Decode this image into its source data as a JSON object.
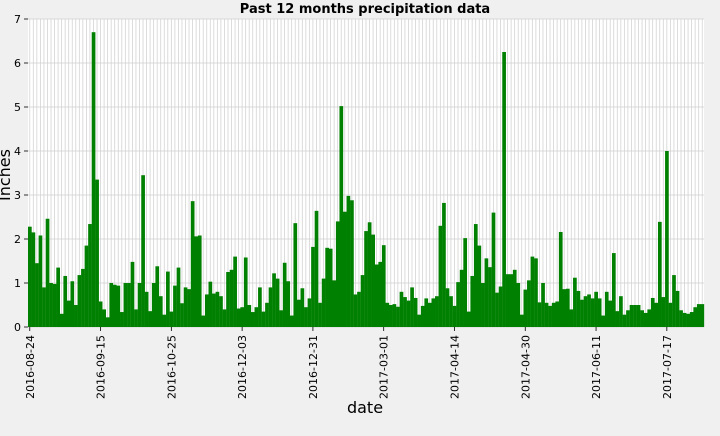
{
  "chart_data": {
    "type": "bar",
    "title": "Past 12 months precipitation data",
    "xlabel": "date",
    "ylabel": "Inches",
    "ylim": [
      0,
      7
    ],
    "yticks": [
      0,
      1,
      2,
      3,
      4,
      5,
      6,
      7
    ],
    "grid": true,
    "bar_color": "#008000",
    "x_tick_labels": [
      "2016-08-24",
      "2016-09-15",
      "2016-10-25",
      "2016-12-03",
      "2016-12-31",
      "2017-03-01",
      "2017-04-14",
      "2017-04-30",
      "2017-06-11",
      "2017-07-17"
    ],
    "x_tick_positions": [
      0,
      20,
      40,
      60,
      80,
      100,
      120,
      140,
      160,
      180
    ],
    "values": [
      2.28,
      2.15,
      1.45,
      2.08,
      0.9,
      2.46,
      1.0,
      0.98,
      1.35,
      0.3,
      1.16,
      0.6,
      1.04,
      0.5,
      1.18,
      1.32,
      1.85,
      2.34,
      6.7,
      3.35,
      0.58,
      0.4,
      0.22,
      1.0,
      0.96,
      0.94,
      0.34,
      1.0,
      1.0,
      1.48,
      0.4,
      1.0,
      3.45,
      0.8,
      0.36,
      1.0,
      1.38,
      0.7,
      0.28,
      1.26,
      0.35,
      0.94,
      1.35,
      0.54,
      0.9,
      0.86,
      2.86,
      2.06,
      2.08,
      0.26,
      0.74,
      1.03,
      0.76,
      0.8,
      0.7,
      0.4,
      1.25,
      1.3,
      1.6,
      0.42,
      0.45,
      1.58,
      0.5,
      0.34,
      0.45,
      0.9,
      0.35,
      0.55,
      0.9,
      1.22,
      1.1,
      0.38,
      1.46,
      1.04,
      0.26,
      2.36,
      0.62,
      0.88,
      0.45,
      0.65,
      1.82,
      2.64,
      0.55,
      1.1,
      1.8,
      1.78,
      1.06,
      2.4,
      5.02,
      2.62,
      2.98,
      2.88,
      0.74,
      0.8,
      1.18,
      2.18,
      2.38,
      2.1,
      1.42,
      1.48,
      1.86,
      0.55,
      0.5,
      0.52,
      0.46,
      0.8,
      0.68,
      0.6,
      0.9,
      0.66,
      0.28,
      0.48,
      0.65,
      0.55,
      0.65,
      0.7,
      2.3,
      2.82,
      0.88,
      0.7,
      0.48,
      1.02,
      1.3,
      2.02,
      0.35,
      1.16,
      2.34,
      1.85,
      1.0,
      1.56,
      1.36,
      2.6,
      0.78,
      0.92,
      6.25,
      1.2,
      1.2,
      1.3,
      1.0,
      0.28,
      0.85,
      1.06,
      1.6,
      1.56,
      0.56,
      1.0,
      0.55,
      0.48,
      0.55,
      0.58,
      2.16,
      0.86,
      0.87,
      0.4,
      1.12,
      0.82,
      0.62,
      0.7,
      0.74,
      0.65,
      0.8,
      0.65,
      0.26,
      0.8,
      0.6,
      1.68,
      0.36,
      0.7,
      0.28,
      0.38,
      0.5,
      0.5,
      0.5,
      0.38,
      0.32,
      0.4,
      0.66,
      0.55,
      2.39,
      0.68,
      4.0,
      0.55,
      1.18,
      0.82,
      0.38,
      0.32,
      0.3,
      0.34,
      0.45,
      0.52,
      0.52
    ]
  }
}
